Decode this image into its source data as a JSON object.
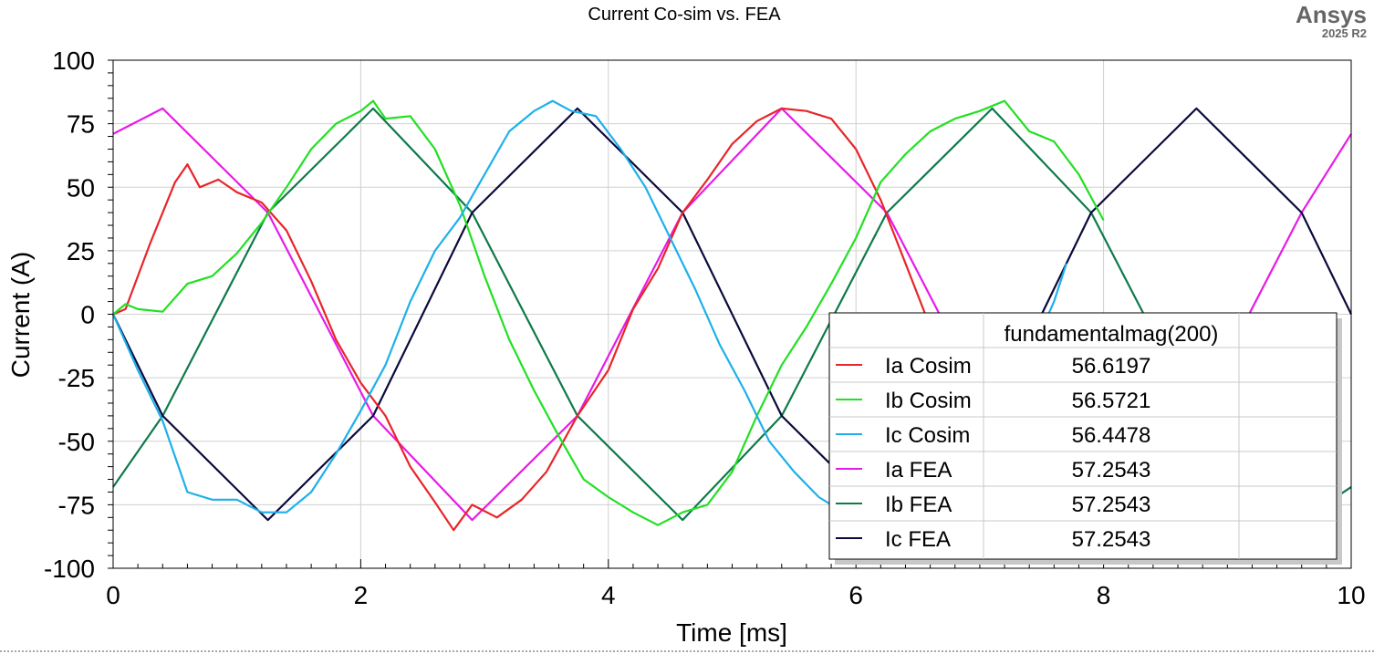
{
  "brand": {
    "name": "Ansys",
    "version": "2025 R2"
  },
  "legend": {
    "header": "fundamentalmag(200)",
    "rows": [
      {
        "name": "Ia Cosim",
        "value": "56.6197",
        "color": "#e8252a"
      },
      {
        "name": "Ib Cosim",
        "value": "56.5721",
        "color": "#22e022"
      },
      {
        "name": "Ic Cosim",
        "value": "56.4478",
        "color": "#1eb0ea"
      },
      {
        "name": "Ia FEA",
        "value": "57.2543",
        "color": "#e81ae8"
      },
      {
        "name": "Ib FEA",
        "value": "57.2543",
        "color": "#0e7a4a"
      },
      {
        "name": "Ic FEA",
        "value": "57.2543",
        "color": "#0a0a3c"
      }
    ]
  },
  "chart_data": {
    "type": "line",
    "title": "Current Co-sim vs. FEA",
    "xlabel": "Time [ms]",
    "ylabel": "Current (A)",
    "xlim": [
      0,
      10
    ],
    "ylim": [
      -100,
      100
    ],
    "xticks": [
      0,
      2,
      4,
      6,
      8,
      10
    ],
    "yticks": [
      -100,
      -75,
      -50,
      -25,
      0,
      25,
      50,
      75,
      100
    ],
    "grid": true,
    "legend_position": "bottom-right",
    "series": [
      {
        "name": "Ia FEA",
        "color": "#e81ae8",
        "x": [
          0,
          0.4,
          1.25,
          2.1,
          2.9,
          3.75,
          4.6,
          5.4,
          6.25,
          7.1,
          7.9,
          8.75,
          9.6,
          10
        ],
        "y": [
          71,
          81,
          40,
          -40,
          -81,
          -40,
          40,
          81,
          40,
          -40,
          -81,
          -40,
          40,
          71
        ]
      },
      {
        "name": "Ib FEA",
        "color": "#0e7a4a",
        "x": [
          0,
          0.4,
          1.25,
          2.1,
          2.9,
          3.75,
          4.6,
          5.4,
          6.25,
          7.1,
          7.9,
          8.75,
          9.6,
          10
        ],
        "y": [
          -68,
          -40,
          40,
          81,
          40,
          -40,
          -81,
          -40,
          40,
          81,
          40,
          -40,
          -81,
          -68
        ]
      },
      {
        "name": "Ic FEA",
        "color": "#0a0a3c",
        "x": [
          0,
          0.4,
          1.25,
          2.1,
          2.9,
          3.75,
          4.6,
          5.4,
          6.25,
          7.1,
          7.9,
          8.75,
          9.6,
          10
        ],
        "y": [
          0,
          -40,
          -81,
          -40,
          40,
          81,
          40,
          -40,
          -81,
          -40,
          40,
          81,
          40,
          0
        ]
      },
      {
        "name": "Ia Cosim",
        "color": "#e8252a",
        "x": [
          0,
          0.1,
          0.2,
          0.3,
          0.4,
          0.5,
          0.6,
          0.7,
          0.85,
          1.0,
          1.2,
          1.4,
          1.6,
          1.8,
          2.0,
          2.2,
          2.4,
          2.6,
          2.75,
          2.9,
          3.1,
          3.3,
          3.5,
          3.75,
          4.0,
          4.2,
          4.4,
          4.6,
          4.8,
          5.0,
          5.2,
          5.4,
          5.6,
          5.8,
          6.0,
          6.2,
          6.4,
          6.6,
          6.65
        ],
        "y": [
          0,
          2,
          15,
          28,
          40,
          52,
          59,
          50,
          53,
          48,
          44,
          33,
          13,
          -10,
          -27,
          -40,
          -60,
          -74,
          -85,
          -75,
          -80,
          -73,
          -62,
          -40,
          -22,
          2,
          18,
          40,
          53,
          67,
          76,
          81,
          80,
          77,
          65,
          45,
          20,
          -5,
          -10
        ]
      },
      {
        "name": "Ib Cosim",
        "color": "#22e022",
        "x": [
          0,
          0.1,
          0.2,
          0.4,
          0.6,
          0.8,
          1.0,
          1.2,
          1.4,
          1.6,
          1.8,
          2.0,
          2.1,
          2.2,
          2.4,
          2.6,
          2.8,
          3.0,
          3.2,
          3.4,
          3.6,
          3.8,
          4.0,
          4.2,
          4.4,
          4.6,
          4.8,
          5.0,
          5.2,
          5.4,
          5.6,
          5.8,
          6.0,
          6.2,
          6.4,
          6.6,
          6.8,
          7.0,
          7.2,
          7.4,
          7.6,
          7.8,
          8.0
        ],
        "y": [
          0,
          4,
          2,
          1,
          12,
          15,
          24,
          36,
          50,
          65,
          75,
          80,
          84,
          77,
          78,
          65,
          43,
          15,
          -10,
          -30,
          -48,
          -65,
          -72,
          -78,
          -83,
          -78,
          -75,
          -62,
          -40,
          -20,
          -5,
          12,
          30,
          52,
          63,
          72,
          77,
          80,
          84,
          72,
          68,
          55,
          37
        ]
      },
      {
        "name": "Ic Cosim",
        "color": "#1eb0ea",
        "x": [
          0,
          0.2,
          0.4,
          0.6,
          0.8,
          1.0,
          1.2,
          1.4,
          1.6,
          1.8,
          2.0,
          2.2,
          2.4,
          2.6,
          2.8,
          3.0,
          3.2,
          3.4,
          3.55,
          3.7,
          3.9,
          4.1,
          4.3,
          4.5,
          4.7,
          4.9,
          5.1,
          5.3,
          5.5,
          5.7,
          5.9,
          7.5,
          7.6,
          7.7
        ],
        "y": [
          0,
          -22,
          -42,
          -70,
          -73,
          -73,
          -78,
          -78,
          -70,
          -55,
          -38,
          -20,
          5,
          25,
          38,
          55,
          72,
          80,
          84,
          80,
          78,
          65,
          50,
          30,
          10,
          -12,
          -30,
          -50,
          -62,
          -72,
          -78,
          -6,
          5,
          20
        ]
      }
    ]
  }
}
